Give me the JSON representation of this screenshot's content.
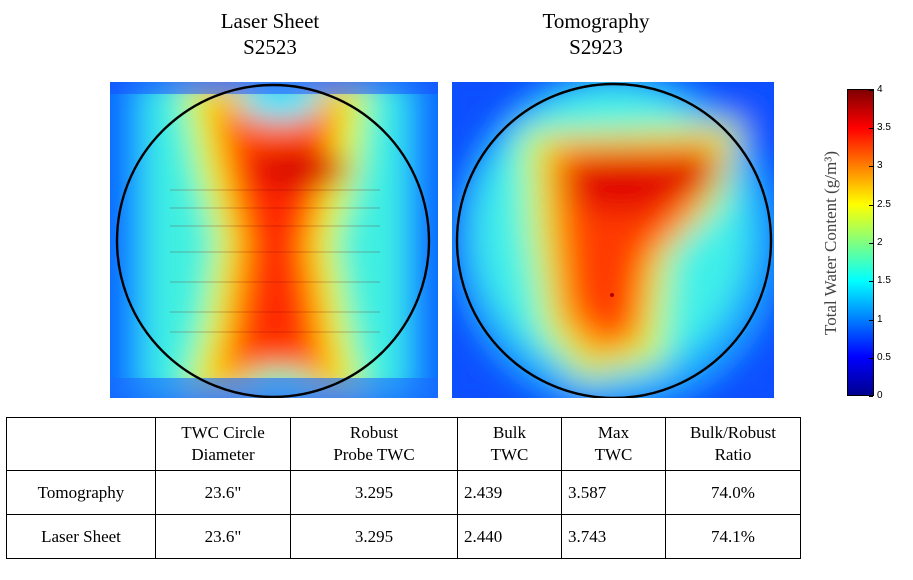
{
  "chart_data": [
    {
      "type": "heatmap",
      "title": "Laser Sheet",
      "subtitle": "S2523"
    },
    {
      "type": "heatmap",
      "title": "Tomography",
      "subtitle": "S2923"
    }
  ],
  "colorbar": {
    "label": "Total Water Content (g/m³)",
    "ticks": [
      "4",
      "3.5",
      "3",
      "2.5",
      "2",
      "1.5",
      "1",
      "0.5",
      "0"
    ],
    "range": [
      0,
      4
    ],
    "colors": [
      "#00008f",
      "#0000ff",
      "#0080ff",
      "#00ffff",
      "#80ff80",
      "#ffff00",
      "#ff8000",
      "#ff0000",
      "#800000"
    ]
  },
  "table": {
    "headers": [
      [
        "",
        ""
      ],
      [
        "TWC Circle",
        "Diameter"
      ],
      [
        "Robust",
        "Probe TWC"
      ],
      [
        "Bulk",
        "TWC"
      ],
      [
        "Max",
        "TWC"
      ],
      [
        "Bulk/Robust",
        "Ratio"
      ]
    ],
    "rows": [
      [
        "Tomography",
        "23.6\"",
        "3.295",
        "2.439",
        "3.587",
        "74.0%"
      ],
      [
        "Laser Sheet",
        "23.6\"",
        "3.295",
        "2.440",
        "3.743",
        "74.1%"
      ]
    ]
  }
}
